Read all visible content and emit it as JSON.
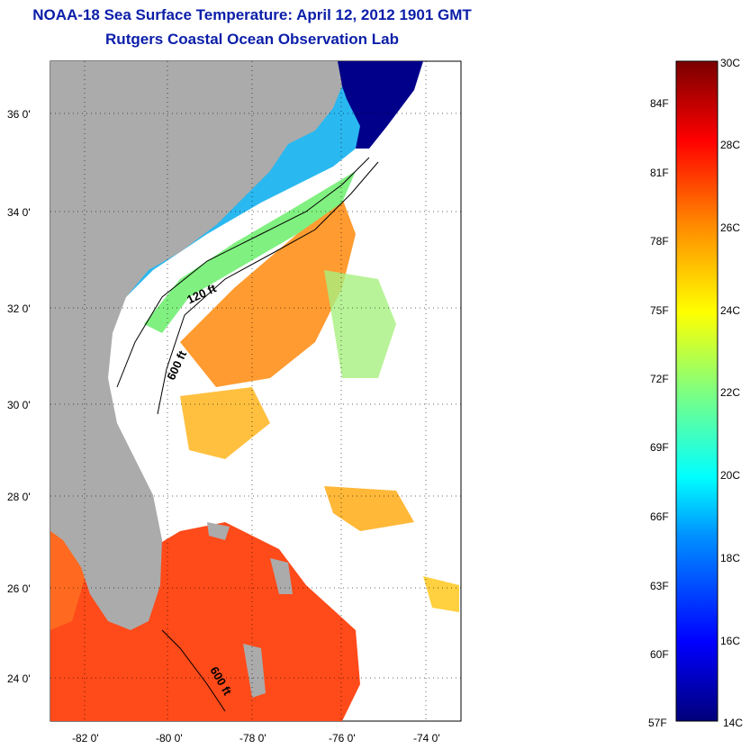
{
  "title": "NOAA-18 Sea Surface Temperature:  April 12, 2012 1901 GMT",
  "subtitle": "Rutgers Coastal Ocean Observation Lab",
  "map": {
    "lat_labels": [
      "36 0'",
      "34 0'",
      "32 0'",
      "30 0'",
      "28 0'",
      "26 0'",
      "24 0'"
    ],
    "lon_labels": [
      "-82 0'",
      "-80 0'",
      "-78 0'",
      "-76 0'",
      "-74 0'"
    ],
    "contour_labels": [
      "120 ft",
      "600 ft",
      "600 ft"
    ]
  },
  "colorbar": {
    "fahrenheit_labels": [
      "84F",
      "81F",
      "78F",
      "75F",
      "72F",
      "69F",
      "66F",
      "63F",
      "60F",
      "57F"
    ],
    "celsius_labels": [
      "30C",
      "28C",
      "26C",
      "24C",
      "22C",
      "20C",
      "18C",
      "16C",
      "14C"
    ],
    "range_c": [
      14,
      30
    ],
    "colors": [
      "#000080",
      "#0000ff",
      "#0080ff",
      "#00ffff",
      "#80ff80",
      "#ffff00",
      "#ff8000",
      "#ff0000",
      "#800000"
    ]
  },
  "colors": {
    "title": "#0b1ea8",
    "land": "#ababab",
    "cold": "#00008b",
    "warm": "#ff4a1a"
  }
}
